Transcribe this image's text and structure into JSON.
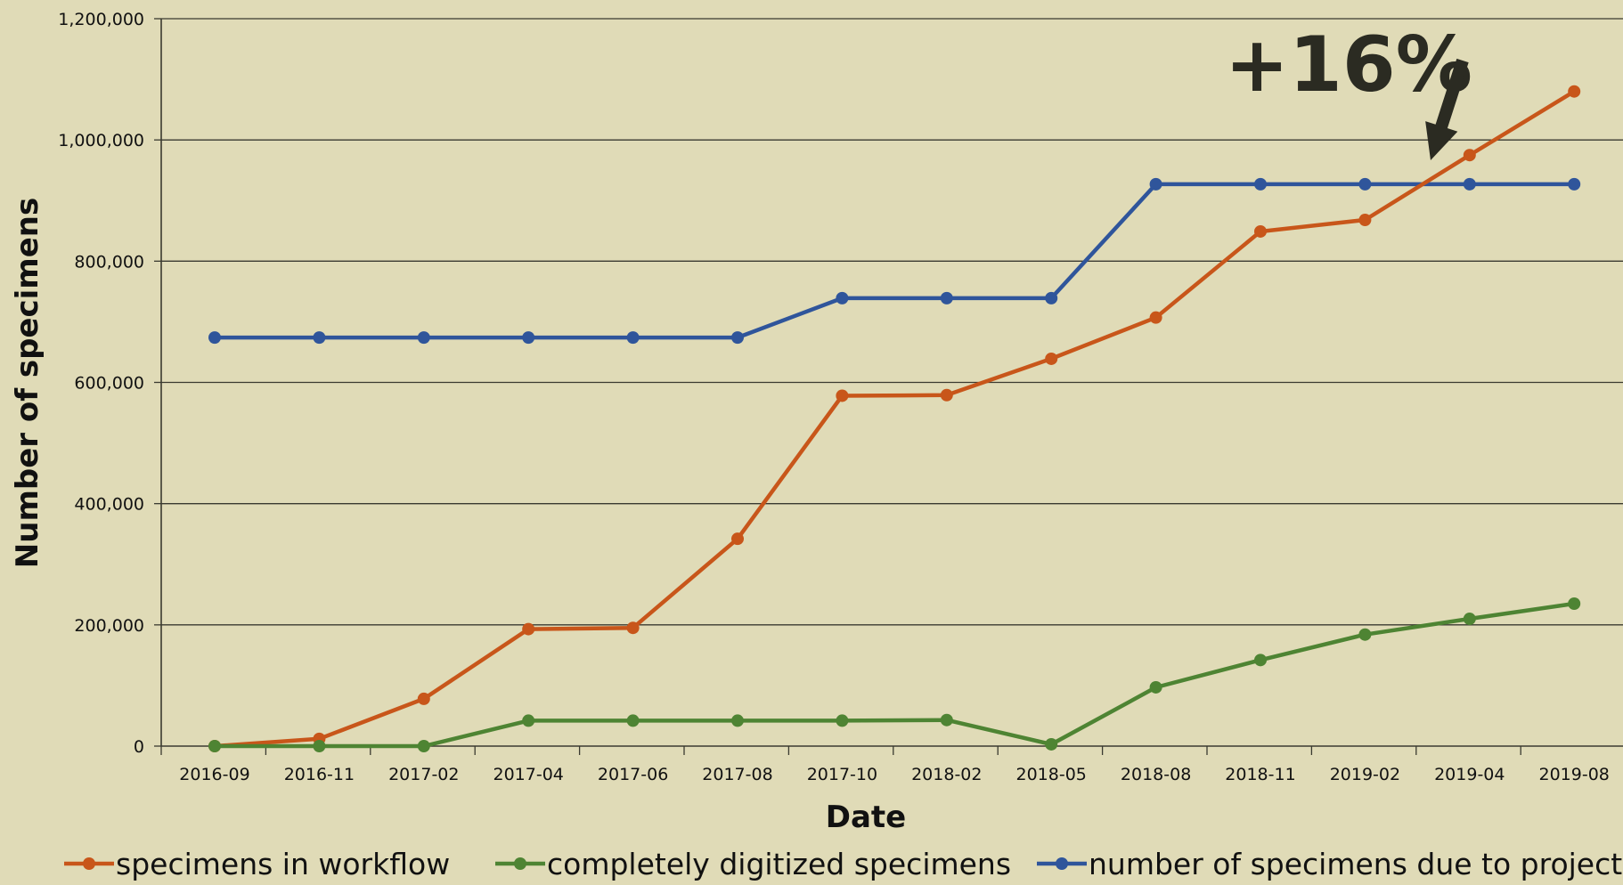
{
  "chart_data": {
    "type": "line",
    "title": "",
    "xlabel": "Date",
    "ylabel": "Number of specimens",
    "x": [
      "2016-09",
      "2016-11",
      "2017-02",
      "2017-04",
      "2017-06",
      "2017-08",
      "2017-10",
      "2018-02",
      "2018-05",
      "2018-08",
      "2018-11",
      "2019-02",
      "2019-04",
      "2019-08"
    ],
    "ylim": [
      0,
      1200000
    ],
    "yticks": [
      0,
      200000,
      400000,
      600000,
      800000,
      1000000,
      1200000
    ],
    "ytick_labels": [
      "0",
      "200,000",
      "400,000",
      "600,000",
      "800,000",
      "1,000,000",
      "1,200,000"
    ],
    "grid": "horizontal",
    "legend_position": "bottom",
    "series": [
      {
        "name": "specimens in workflow",
        "color": "#c8561a",
        "values": [
          0,
          12000,
          78000,
          193000,
          195000,
          342000,
          578000,
          579000,
          639000,
          707000,
          849000,
          868000,
          975000,
          1080000
        ]
      },
      {
        "name": "completely digitized specimens",
        "color": "#4e8433",
        "values": [
          0,
          0,
          0,
          42000,
          42000,
          42000,
          42000,
          43000,
          3000,
          97000,
          142000,
          184000,
          210000,
          235000
        ]
      },
      {
        "name": "number of specimens due to project",
        "color": "#2f559b",
        "values": [
          674000,
          674000,
          674000,
          674000,
          674000,
          674000,
          739000,
          739000,
          739000,
          927000,
          927000,
          927000,
          927000,
          927000
        ]
      }
    ],
    "annotations": [
      {
        "text": "+16%",
        "points_to": {
          "x": "2019-04",
          "y": 960000
        }
      }
    ]
  }
}
